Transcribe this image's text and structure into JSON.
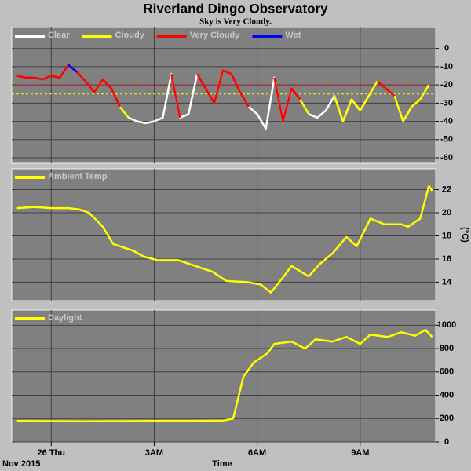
{
  "header": {
    "title": "Riverland Dingo Observatory",
    "subtitle": "Sky is Very Cloudy."
  },
  "chart_data": [
    {
      "type": "line",
      "xlim": [
        -1.15,
        11.2
      ],
      "xticks": [
        0,
        3,
        6,
        9
      ],
      "ylim": [
        -63,
        11.5
      ],
      "yticks": [
        0,
        -10,
        -20,
        -30,
        -40,
        -50,
        -60
      ],
      "grid": true,
      "legend": "top-left",
      "thresholds": [
        {
          "value": -20,
          "color": "#ff0000"
        },
        {
          "value": -25,
          "color": "#ffff00"
        }
      ],
      "x": [
        -1.0,
        -0.75,
        -0.5,
        -0.25,
        0,
        0.25,
        0.5,
        0.75,
        1,
        1.25,
        1.5,
        1.75,
        2,
        2.25,
        2.5,
        2.75,
        3,
        3.25,
        3.5,
        3.75,
        4,
        4.25,
        4.5,
        4.75,
        5,
        5.25,
        5.5,
        5.75,
        6,
        6.25,
        6.5,
        6.75,
        7,
        7.25,
        7.5,
        7.75,
        8,
        8.25,
        8.5,
        8.75,
        9,
        9.25,
        9.5,
        9.75,
        10,
        10.25,
        10.5,
        10.75,
        11
      ],
      "series": [
        {
          "name": "Clear",
          "color": "#ffffff",
          "values": [
            null,
            null,
            null,
            null,
            null,
            null,
            null,
            null,
            null,
            null,
            null,
            null,
            null,
            -38,
            -40,
            -41,
            -40,
            -38,
            -14,
            -38,
            -36,
            -14,
            null,
            null,
            null,
            null,
            null,
            -32,
            -36,
            -44,
            -16,
            -40,
            -22,
            null,
            -36,
            -38,
            -34,
            -26,
            -40,
            -28,
            -34,
            -26,
            null,
            null,
            null,
            -40,
            -32,
            null,
            null
          ]
        },
        {
          "name": "Cloudy",
          "color": "#ffff00",
          "values": [
            null,
            null,
            null,
            null,
            null,
            null,
            null,
            null,
            null,
            -24,
            -17,
            null,
            -32,
            -38,
            null,
            null,
            null,
            null,
            null,
            null,
            null,
            null,
            null,
            -30,
            -12,
            null,
            null,
            null,
            null,
            null,
            null,
            null,
            null,
            -28,
            -36,
            null,
            null,
            -26,
            -40,
            -28,
            -34,
            -26,
            -18,
            null,
            -26,
            -40,
            -32,
            -28,
            -20
          ]
        },
        {
          "name": "Very Cloudy",
          "color": "#ff0000",
          "values": [
            -15,
            -16,
            -16,
            -17,
            -15,
            -16,
            -9,
            -13,
            -18,
            -24,
            -17,
            -22,
            -32,
            null,
            null,
            null,
            null,
            null,
            -14,
            -38,
            null,
            -14,
            -22,
            -30,
            -12,
            -14,
            -24,
            -32,
            null,
            null,
            -16,
            -40,
            -22,
            -28,
            null,
            null,
            null,
            null,
            null,
            null,
            null,
            null,
            -18,
            -22,
            -26,
            null,
            null,
            null,
            -20
          ]
        },
        {
          "name": "Wet",
          "color": "#0000ff",
          "values": [
            null,
            null,
            null,
            null,
            null,
            null,
            -9,
            -13,
            null,
            null,
            null,
            null,
            null,
            null,
            null,
            null,
            null,
            null,
            null,
            null,
            null,
            null,
            null,
            null,
            null,
            null,
            null,
            null,
            null,
            null,
            null,
            null,
            null,
            null,
            null,
            null,
            null,
            null,
            null,
            null,
            null,
            null,
            null,
            null,
            null,
            null,
            null,
            null,
            null
          ]
        }
      ]
    },
    {
      "type": "line",
      "xlim": [
        -1.15,
        11.2
      ],
      "xticks": [
        0,
        3,
        6,
        9
      ],
      "ylim": [
        12.4,
        23.8
      ],
      "yticks": [
        14,
        16,
        18,
        20,
        22
      ],
      "grid": true,
      "legend": "top-left",
      "y_unit": "(°C)",
      "x": [
        -1.0,
        -0.5,
        0,
        0.5,
        0.8,
        1.1,
        1.5,
        1.8,
        2.4,
        2.7,
        3.1,
        3.7,
        4.2,
        4.7,
        5.1,
        5.7,
        6.1,
        6.4,
        6.75,
        7.0,
        7.5,
        7.8,
        8.2,
        8.6,
        8.9,
        9.3,
        9.7,
        10.2,
        10.4,
        10.75,
        11.0,
        11.1
      ],
      "series": [
        {
          "name": "Ambient Temp",
          "color": "#ffff00",
          "values": [
            20.4,
            20.5,
            20.4,
            20.4,
            20.3,
            20.0,
            18.8,
            17.3,
            16.7,
            16.2,
            15.9,
            15.9,
            15.4,
            14.9,
            14.1,
            14.0,
            13.8,
            13.1,
            14.4,
            15.4,
            14.5,
            15.5,
            16.5,
            17.9,
            17.1,
            19.5,
            19.0,
            19.0,
            18.8,
            19.5,
            22.3,
            21.9
          ]
        }
      ]
    },
    {
      "type": "line",
      "xlim": [
        -1.15,
        11.2
      ],
      "xticks": [
        {
          "value": 0,
          "label": "26 Thu"
        },
        {
          "value": 3,
          "label": "3AM"
        },
        {
          "value": 6,
          "label": "6AM"
        },
        {
          "value": 9,
          "label": "9AM"
        }
      ],
      "xlabel": "Time",
      "date_label": "Nov 2015",
      "ylim": [
        0,
        1130
      ],
      "yticks": [
        0,
        200,
        400,
        600,
        800,
        1000
      ],
      "grid": true,
      "legend": "top-left",
      "x": [
        -1.0,
        0,
        1,
        2,
        3,
        4,
        5,
        5.3,
        5.6,
        5.9,
        6.3,
        6.5,
        7.0,
        7.4,
        7.7,
        8.2,
        8.6,
        9.0,
        9.3,
        9.8,
        10.2,
        10.6,
        10.9,
        11.1
      ],
      "series": [
        {
          "name": "Daylight",
          "color": "#ffff00",
          "values": [
            180,
            178,
            176,
            178,
            180,
            180,
            182,
            200,
            560,
            680,
            760,
            840,
            860,
            800,
            880,
            860,
            900,
            840,
            920,
            900,
            940,
            910,
            960,
            900
          ]
        }
      ]
    }
  ]
}
